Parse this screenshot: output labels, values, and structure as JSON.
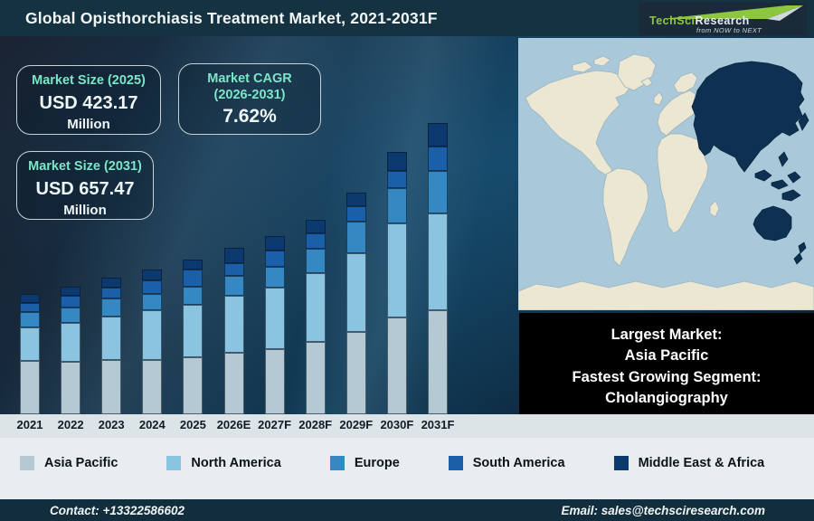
{
  "header": {
    "title": "Global Opisthorchiasis Treatment Market, 2021-2031F",
    "logo": {
      "brand_primary": "TechSci",
      "brand_secondary": "Research",
      "tagline": "from NOW to NEXT",
      "brand_green": "#8dc63f"
    }
  },
  "info_boxes": {
    "market_size_2025": {
      "label": "Market Size (2025)",
      "value": "USD 423.17",
      "unit": "Million"
    },
    "cagr": {
      "label_line1": "Market CAGR",
      "label_line2": "(2026-2031)",
      "value": "7.62%"
    },
    "market_size_2031": {
      "label": "Market Size (2031)",
      "value": "USD 657.47",
      "unit": "Million"
    }
  },
  "highlight_box": {
    "line1": "Largest Market:",
    "line2": "Asia Pacific",
    "line3": "Fastest Growing Segment:",
    "line4": "Cholangiography"
  },
  "map": {
    "highlighted_region": "Asia Pacific",
    "ocean_color": "#a9c9da",
    "land_color": "#ece7d2",
    "highlight_color": "#0e3152"
  },
  "chart_data": {
    "type": "stacked-bar",
    "title": "Global Opisthorchiasis Treatment Market, 2021-2031F",
    "categories": [
      "2021",
      "2022",
      "2023",
      "2024",
      "2025",
      "2026E",
      "2027F",
      "2028F",
      "2029F",
      "2030F",
      "2031F"
    ],
    "unit": "segment heights in px as drawn (figure shows no numeric value axis)",
    "series": [
      {
        "name": "Asia Pacific",
        "color": "#b5c9d5",
        "values": [
          59,
          58,
          60,
          60,
          63,
          68,
          72,
          80,
          91,
          107,
          115
        ]
      },
      {
        "name": "North America",
        "color": "#8bc4e0",
        "values": [
          37,
          43,
          48,
          55,
          58,
          63,
          68,
          76,
          87,
          104,
          107
        ]
      },
      {
        "name": "Europe",
        "color": "#3688c2",
        "values": [
          17,
          17,
          20,
          18,
          20,
          22,
          23,
          27,
          35,
          39,
          47
        ]
      },
      {
        "name": "South America",
        "color": "#1c5fa9",
        "values": [
          10,
          13,
          12,
          15,
          19,
          14,
          18,
          17,
          17,
          19,
          27
        ]
      },
      {
        "name": "Middle East & Africa",
        "color": "#0c3a6e",
        "values": [
          10,
          10,
          11,
          12,
          11,
          17,
          16,
          15,
          15,
          21,
          26
        ]
      }
    ],
    "anchors": {
      "market_size_2025_usd_million": 423.17,
      "market_size_2031_usd_million": 657.47,
      "cagr_2026_2031_percent": 7.62
    },
    "estimated_totals_usd_million": [
      329,
      349,
      374,
      396,
      423.17,
      455.4,
      490.1,
      527.5,
      567.7,
      611.0,
      657.47
    ],
    "legend_position": "bottom",
    "grid": false
  },
  "footer": {
    "contact": "Contact: +13322586602",
    "email": "Email: sales@techsciresearch.com"
  }
}
